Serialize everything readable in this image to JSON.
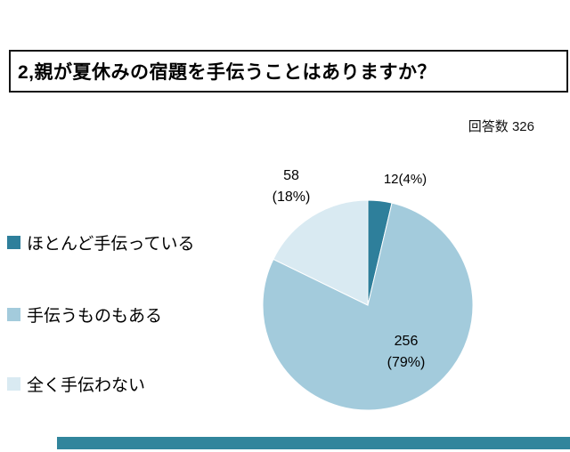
{
  "chart_data": {
    "type": "pie",
    "title": "2,親が夏休みの宿題を手伝うことはありますか？",
    "respondents_label": "回答数 326",
    "total_responses": 326,
    "legend_position": "left",
    "start_angle_deg": -90,
    "direction": "clockwise",
    "slices": [
      {
        "label": "ほとんど手伝っている",
        "value": 12,
        "percent": 4,
        "color": "#2E7F9B",
        "data_label": "12(4%)",
        "label_lines": [
          "12(4%)"
        ]
      },
      {
        "label": "手伝うものもある",
        "value": 256,
        "percent": 79,
        "color": "#A3CBDC",
        "data_label": "256 (79%)",
        "label_lines": [
          "256",
          "(79%)"
        ]
      },
      {
        "label": "全く手伝わない",
        "value": 58,
        "percent": 18,
        "color": "#D9EAF2",
        "data_label": "58 (18%)",
        "label_lines": [
          "58",
          "(18%)"
        ]
      }
    ],
    "accent_bar_color": "#31859C"
  }
}
